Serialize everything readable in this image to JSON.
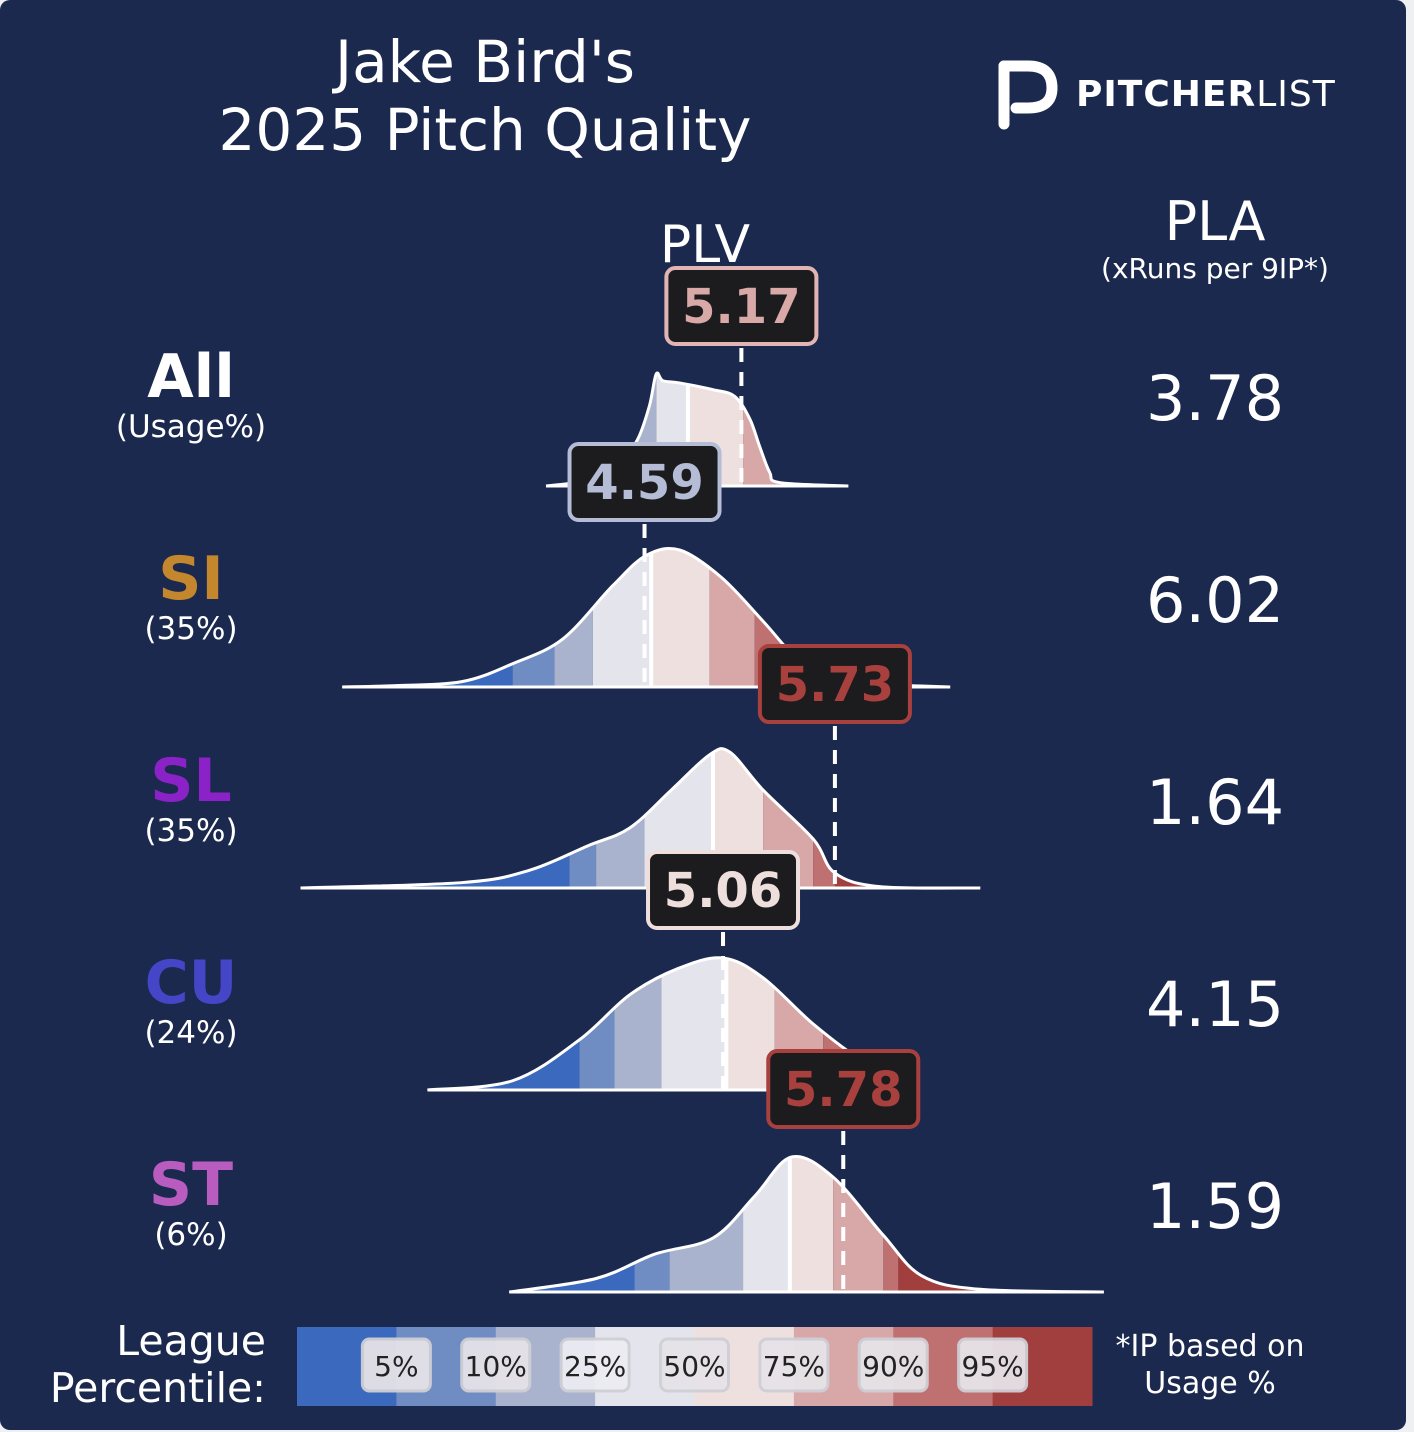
{
  "title_line1": "Jake Bird's",
  "title_line2": "2025 Pitch Quality",
  "brand": {
    "bold": "PITCHER",
    "light": "LIST",
    "icon": "pitcherlist-logo-icon"
  },
  "headers": {
    "plv": "PLV",
    "pla": "PLA",
    "pla_sub": "(xRuns per 9IP*)"
  },
  "legend": {
    "label_line1": "League",
    "label_line2": "Percentile:",
    "note_line1": "*IP based on",
    "note_line2": "Usage %"
  },
  "colors": {
    "background": "#1c294e",
    "percentile_bands": [
      "#3a69be",
      "#6f8cc3",
      "#aab3cd",
      "#e4e4ec",
      "#efe0e0",
      "#d8a8a8",
      "#bf7070",
      "#a13f3f"
    ]
  },
  "chart_data": {
    "type": "ridgeline",
    "xlabel": "PLV",
    "percentiles": [
      "5%",
      "10%",
      "25%",
      "50%",
      "75%",
      "90%",
      "95%"
    ],
    "rows": [
      {
        "code": "All",
        "usage": "(Usage%)",
        "color": "#ffffff",
        "plv": 5.17,
        "plv_label": "5.17",
        "pla": "3.78",
        "x_range": [
          4.0,
          5.81
        ],
        "percentile_values": [
          4.38,
          4.51,
          4.66,
          4.85,
          5.18,
          5.43,
          5.66
        ],
        "density": [
          [
            4.0,
            0
          ],
          [
            4.28,
            0.06
          ],
          [
            4.45,
            0.22
          ],
          [
            4.55,
            0.42
          ],
          [
            4.62,
            0.72
          ],
          [
            4.66,
            1.0
          ],
          [
            4.7,
            0.94
          ],
          [
            4.8,
            0.92
          ],
          [
            5.0,
            0.86
          ],
          [
            5.13,
            0.8
          ],
          [
            5.22,
            0.6
          ],
          [
            5.28,
            0.35
          ],
          [
            5.34,
            0.12
          ],
          [
            5.4,
            0.03
          ],
          [
            5.81,
            0
          ]
        ],
        "label_color": "#d9a9a8",
        "label_border": "#e0b5b3"
      },
      {
        "code": "SI",
        "usage": "(35%)",
        "color": "#c4872e",
        "plv": 4.59,
        "plv_label": "4.59",
        "pla": "6.02",
        "x_range": [
          2.78,
          6.42
        ],
        "percentile_values": [
          3.8,
          4.05,
          4.28,
          4.63,
          4.98,
          5.25,
          5.45
        ],
        "density": [
          [
            2.78,
            0
          ],
          [
            3.1,
            0.01
          ],
          [
            3.5,
            0.04
          ],
          [
            3.8,
            0.17
          ],
          [
            4.1,
            0.35
          ],
          [
            4.4,
            0.74
          ],
          [
            4.6,
            0.96
          ],
          [
            4.8,
            1.0
          ],
          [
            5.05,
            0.8
          ],
          [
            5.3,
            0.48
          ],
          [
            5.5,
            0.21
          ],
          [
            5.7,
            0.06
          ],
          [
            6.0,
            0.02
          ],
          [
            6.42,
            0
          ]
        ],
        "label_color": "#b4bcd6",
        "label_border": "#b4bcd6"
      },
      {
        "code": "SL",
        "usage": "(35%)",
        "color": "#8b22c8",
        "plv": 5.73,
        "plv_label": "5.73",
        "pla": "1.64",
        "x_range": [
          2.53,
          6.6
        ],
        "percentile_values": [
          4.14,
          4.3,
          4.59,
          5.0,
          5.3,
          5.6,
          5.73
        ],
        "density": [
          [
            2.53,
            0
          ],
          [
            3.5,
            0.04
          ],
          [
            3.9,
            0.13
          ],
          [
            4.25,
            0.31
          ],
          [
            4.5,
            0.44
          ],
          [
            4.75,
            0.72
          ],
          [
            4.98,
            0.98
          ],
          [
            5.1,
            1.0
          ],
          [
            5.3,
            0.72
          ],
          [
            5.6,
            0.36
          ],
          [
            5.73,
            0.11
          ],
          [
            6.0,
            0.01
          ],
          [
            6.6,
            0
          ]
        ],
        "label_color": "#a8403e",
        "label_border": "#a8403e"
      },
      {
        "code": "CU",
        "usage": "(24%)",
        "color": "#4545c8",
        "plv": 5.06,
        "plv_label": "5.06",
        "pla": "4.15",
        "x_range": [
          3.29,
          6.16
        ],
        "percentile_values": [
          4.2,
          4.41,
          4.69,
          5.08,
          5.37,
          5.66,
          5.94
        ],
        "density": [
          [
            3.29,
            0
          ],
          [
            3.8,
            0.07
          ],
          [
            4.2,
            0.38
          ],
          [
            4.5,
            0.72
          ],
          [
            4.79,
            0.92
          ],
          [
            5.06,
            1.0
          ],
          [
            5.3,
            0.85
          ],
          [
            5.6,
            0.5
          ],
          [
            5.9,
            0.22
          ],
          [
            6.16,
            0.1
          ]
        ],
        "label_color": "#eedfdc",
        "label_border": "#eedfdc"
      },
      {
        "code": "ST",
        "usage": "(6%)",
        "color": "#b85cc0",
        "plv": 5.78,
        "plv_label": "5.78",
        "pla": "1.59",
        "x_range": [
          3.78,
          7.34
        ],
        "percentile_values": [
          4.53,
          4.74,
          5.18,
          5.46,
          5.72,
          6.02,
          6.11
        ],
        "density": [
          [
            3.78,
            0
          ],
          [
            4.3,
            0.1
          ],
          [
            4.65,
            0.28
          ],
          [
            5.0,
            0.4
          ],
          [
            5.25,
            0.71
          ],
          [
            5.47,
            1.0
          ],
          [
            5.72,
            0.85
          ],
          [
            6.02,
            0.42
          ],
          [
            6.25,
            0.12
          ],
          [
            6.6,
            0.02
          ],
          [
            7.34,
            0
          ]
        ],
        "label_color": "#a8403e",
        "label_border": "#a8403e"
      }
    ]
  }
}
